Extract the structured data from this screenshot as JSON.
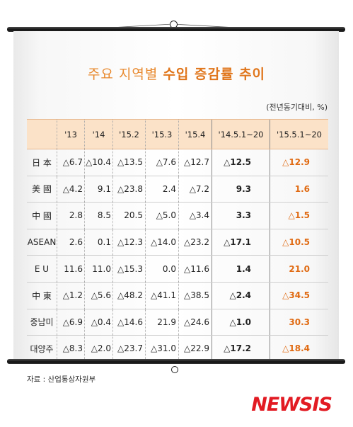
{
  "title_prefix": "주요 지역별 ",
  "title_emphasis": "수입 증감률 추이",
  "unit": "(전년동기대비, %)",
  "columns": [
    "",
    "'13",
    "'14",
    "'15.2",
    "'15.3",
    "'15.4",
    "'14.5.1~20",
    "'15.5.1~20"
  ],
  "rows": [
    {
      "region": "日 本",
      "values": [
        "△6.7",
        "△10.4",
        "△13.5",
        "△7.6",
        "△12.7",
        "△12.5",
        "△12.9"
      ]
    },
    {
      "region": "美 國",
      "values": [
        "△4.2",
        "9.1",
        "△23.8",
        "2.4",
        "△7.2",
        "9.3",
        "1.6"
      ]
    },
    {
      "region": "中 國",
      "values": [
        "2.8",
        "8.5",
        "20.5",
        "△5.0",
        "△3.4",
        "3.3",
        "△1.5"
      ]
    },
    {
      "region": "ASEAN",
      "values": [
        "2.6",
        "0.1",
        "△12.3",
        "△14.0",
        "△23.2",
        "△17.1",
        "△10.5"
      ]
    },
    {
      "region": "E U",
      "values": [
        "11.6",
        "11.0",
        "△15.3",
        "0.0",
        "△11.6",
        "1.4",
        "21.0"
      ]
    },
    {
      "region": "中 東",
      "values": [
        "△1.2",
        "△5.6",
        "△48.2",
        "△41.1",
        "△38.5",
        "△2.4",
        "△34.5"
      ]
    },
    {
      "region": "중남미",
      "values": [
        "△6.9",
        "△0.4",
        "△14.6",
        "21.9",
        "△24.6",
        "△1.0",
        "30.3"
      ]
    },
    {
      "region": "대양주",
      "values": [
        "△8.3",
        "△2.0",
        "△23.7",
        "△31.0",
        "△22.9",
        "△17.2",
        "△18.4"
      ]
    }
  ],
  "source": "자료 : 산업통상자원부",
  "logo": "NEWSIS",
  "colors": {
    "accent": "#e0761c",
    "header_bg": "#fbe2c8",
    "logo_red": "#e21b23"
  }
}
